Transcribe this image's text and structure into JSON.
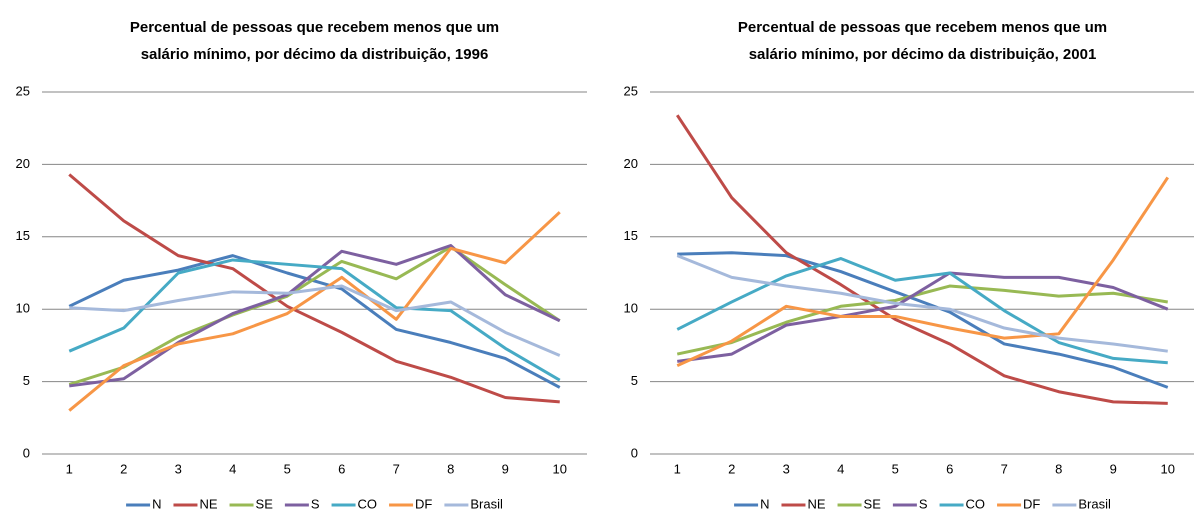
{
  "chart_data": [
    {
      "type": "line",
      "title": [
        "Percentual de pessoas que recebem menos que um",
        "salário mínimo, por décimo da distribuição, 1996"
      ],
      "categories": [
        1,
        2,
        3,
        4,
        5,
        6,
        7,
        8,
        9,
        10
      ],
      "ylim": [
        0,
        25
      ],
      "yticks": [
        0,
        5,
        10,
        15,
        20,
        25
      ],
      "grid": true,
      "legend": "bottom",
      "series": [
        {
          "name": "N",
          "color": "#4a7ebb",
          "values": [
            10.2,
            12.0,
            12.7,
            13.7,
            12.5,
            11.4,
            8.6,
            7.7,
            6.6,
            4.6
          ]
        },
        {
          "name": "NE",
          "color": "#be4b48",
          "values": [
            19.3,
            16.1,
            13.7,
            12.8,
            10.2,
            8.4,
            6.4,
            5.3,
            3.9,
            3.6
          ]
        },
        {
          "name": "SE",
          "color": "#98b954",
          "values": [
            4.8,
            6.0,
            8.1,
            9.6,
            10.9,
            13.3,
            12.1,
            14.3,
            11.7,
            9.2
          ]
        },
        {
          "name": "S",
          "color": "#7d60a0",
          "values": [
            4.7,
            5.2,
            7.7,
            9.7,
            11.0,
            14.0,
            13.1,
            14.4,
            11.0,
            9.2
          ]
        },
        {
          "name": "CO",
          "color": "#46aac5",
          "values": [
            7.1,
            8.7,
            12.5,
            13.4,
            13.1,
            12.8,
            10.1,
            9.9,
            7.3,
            5.1
          ]
        },
        {
          "name": "DF",
          "color": "#f79646",
          "values": [
            3.0,
            6.1,
            7.6,
            8.3,
            9.7,
            12.2,
            9.3,
            14.2,
            13.2,
            16.7
          ]
        },
        {
          "name": "Brasil",
          "color": "#a5b9db",
          "values": [
            10.1,
            9.9,
            10.6,
            11.2,
            11.1,
            11.6,
            9.9,
            10.5,
            8.4,
            6.8
          ]
        }
      ]
    },
    {
      "type": "line",
      "title": [
        "Percentual de pessoas que recebem menos que um",
        "salário mínimo, por décimo da distribuição, 2001"
      ],
      "categories": [
        1,
        2,
        3,
        4,
        5,
        6,
        7,
        8,
        9,
        10
      ],
      "ylim": [
        0,
        25
      ],
      "yticks": [
        0,
        5,
        10,
        15,
        20,
        25
      ],
      "grid": true,
      "legend": "bottom",
      "series": [
        {
          "name": "N",
          "color": "#4a7ebb",
          "values": [
            13.8,
            13.9,
            13.7,
            12.6,
            11.2,
            9.8,
            7.6,
            6.9,
            6.0,
            4.6
          ]
        },
        {
          "name": "NE",
          "color": "#be4b48",
          "values": [
            23.4,
            17.7,
            13.9,
            11.7,
            9.3,
            7.6,
            5.4,
            4.3,
            3.6,
            3.5
          ]
        },
        {
          "name": "SE",
          "color": "#98b954",
          "values": [
            6.9,
            7.7,
            9.1,
            10.2,
            10.6,
            11.6,
            11.3,
            10.9,
            11.1,
            10.5
          ]
        },
        {
          "name": "S",
          "color": "#7d60a0",
          "values": [
            6.4,
            6.9,
            8.9,
            9.5,
            10.2,
            12.5,
            12.2,
            12.2,
            11.5,
            10.0
          ]
        },
        {
          "name": "CO",
          "color": "#46aac5",
          "values": [
            8.6,
            10.5,
            12.3,
            13.5,
            12.0,
            12.5,
            9.9,
            7.7,
            6.6,
            6.3
          ]
        },
        {
          "name": "DF",
          "color": "#f79646",
          "values": [
            6.1,
            7.8,
            10.2,
            9.5,
            9.5,
            8.7,
            8.0,
            8.3,
            13.4,
            19.1
          ]
        },
        {
          "name": "Brasil",
          "color": "#a5b9db",
          "values": [
            13.7,
            12.2,
            11.6,
            11.1,
            10.4,
            10.0,
            8.7,
            8.0,
            7.6,
            7.1
          ]
        }
      ]
    }
  ]
}
